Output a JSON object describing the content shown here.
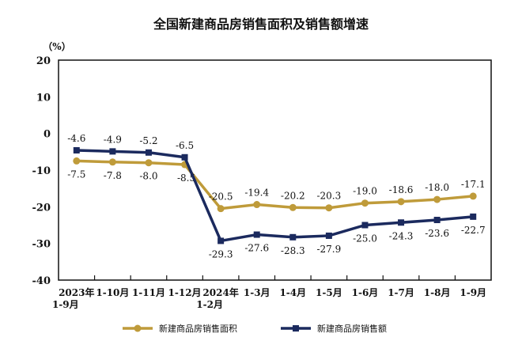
{
  "chart_data": {
    "type": "line",
    "title": "全国新建商品房销售面积及销售额增速",
    "unit_label": "（%）",
    "categories": [
      [
        "2023年",
        "1-9月"
      ],
      [
        "1-10月"
      ],
      [
        "1-11月"
      ],
      [
        "1-12月"
      ],
      [
        "2024年",
        "1-2月"
      ],
      [
        "1-3月"
      ],
      [
        "1-4月"
      ],
      [
        "1-5月"
      ],
      [
        "1-6月"
      ],
      [
        "1-7月"
      ],
      [
        "1-8月"
      ],
      [
        "1-9月"
      ]
    ],
    "ylim": [
      -40,
      20
    ],
    "yticks": [
      20,
      10,
      0,
      -10,
      -20,
      -30,
      -40
    ],
    "grid": false,
    "legend_placement": "bottom",
    "series": [
      {
        "name": "新建商品房销售面积",
        "color": "#BF9B3A",
        "marker": "diamond",
        "values": [
          -7.5,
          -7.8,
          -8.0,
          -8.5,
          -20.5,
          -19.4,
          -20.2,
          -20.3,
          -19.0,
          -18.6,
          -18.0,
          -17.1
        ],
        "label_position": [
          "below",
          "below",
          "below",
          "below",
          "above",
          "above",
          "above",
          "above",
          "above",
          "above",
          "above",
          "above"
        ]
      },
      {
        "name": "新建商品房销售额",
        "color": "#1B2A5E",
        "marker": "square",
        "values": [
          -4.6,
          -4.9,
          -5.2,
          -6.5,
          -29.3,
          -27.6,
          -28.3,
          -27.9,
          -25.0,
          -24.3,
          -23.6,
          -22.7
        ],
        "label_position": [
          "above",
          "above",
          "above",
          "above",
          "below",
          "below",
          "below",
          "below",
          "below",
          "below",
          "below",
          "below"
        ]
      }
    ]
  }
}
